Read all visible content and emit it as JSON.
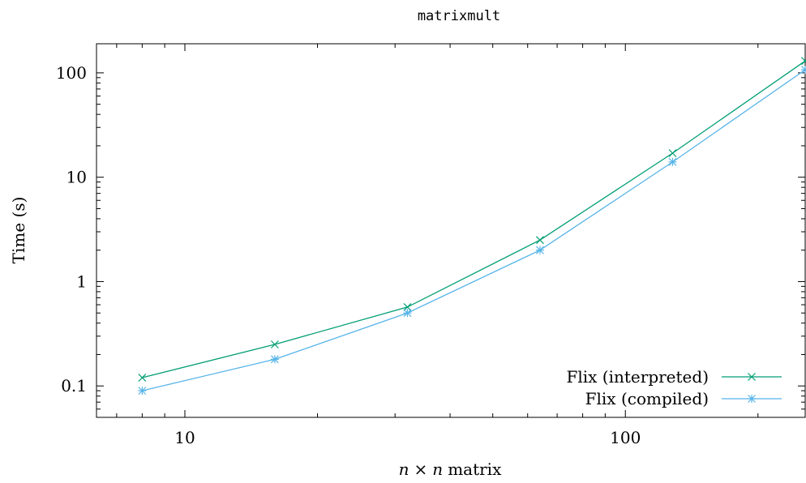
{
  "chart_data": {
    "type": "line",
    "title": "matrixmult",
    "xlabel_var": "n",
    "xlabel_times": "×",
    "xlabel_text": "matrix",
    "ylabel": "Time (s)",
    "x_scale": "log",
    "y_scale": "log",
    "xlim": [
      6.3,
      256
    ],
    "ylim": [
      0.05,
      190
    ],
    "x_ticks": [
      {
        "value": 10,
        "label": "10"
      },
      {
        "value": 100,
        "label": "100"
      }
    ],
    "y_ticks": [
      {
        "value": 0.1,
        "label": "0.1"
      },
      {
        "value": 1,
        "label": "1"
      },
      {
        "value": 10,
        "label": "10"
      },
      {
        "value": 100,
        "label": "100"
      }
    ],
    "grid": false,
    "legend_position": "bottom-right",
    "series": [
      {
        "name": "Flix (interpreted)",
        "color": "#009e73",
        "marker": "x",
        "x": [
          8,
          16,
          32,
          64,
          128,
          256
        ],
        "y": [
          0.12,
          0.25,
          0.57,
          2.5,
          17,
          130
        ]
      },
      {
        "name": "Flix (compiled)",
        "color": "#56b4e9",
        "marker": "star",
        "x": [
          8,
          16,
          32,
          64,
          128,
          256
        ],
        "y": [
          0.09,
          0.18,
          0.5,
          2.0,
          14,
          107
        ]
      }
    ]
  }
}
